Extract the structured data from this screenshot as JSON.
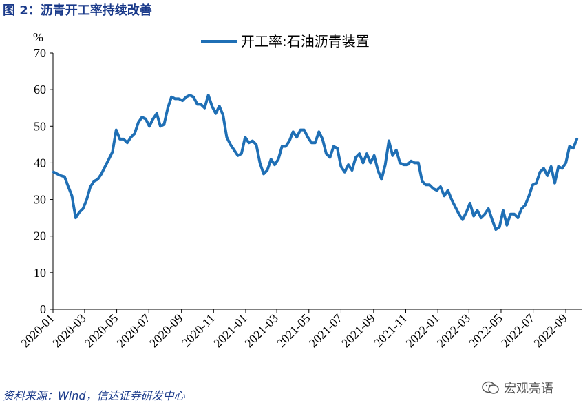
{
  "figure": {
    "title": "图 2：沥青开工率持续改善",
    "source": "资料来源：Wind，信达证券研发中心",
    "watermark": "宏观亮语"
  },
  "chart_data": {
    "type": "line",
    "unit_label": "%",
    "ylim": [
      0,
      70
    ],
    "yticks": [
      0,
      10,
      20,
      30,
      40,
      50,
      60,
      70
    ],
    "xlim": [
      "2020-01",
      "2022-10"
    ],
    "xticks": [
      "2020-01",
      "2020-03",
      "2020-05",
      "2020-07",
      "2020-09",
      "2020-11",
      "2021-01",
      "2021-03",
      "2021-05",
      "2021-07",
      "2021-09",
      "2021-11",
      "2022-01",
      "2022-03",
      "2022-05",
      "2022-07",
      "2022-09"
    ],
    "grid": false,
    "legend_position": "top-center",
    "series": [
      {
        "name": "开工率:石油沥青装置",
        "color": "#1f6fb5",
        "points": [
          [
            "2020-01-02",
            37.5
          ],
          [
            "2020-01-09",
            37.0
          ],
          [
            "2020-01-16",
            36.5
          ],
          [
            "2020-01-23",
            36.2
          ],
          [
            "2020-01-30",
            33.5
          ],
          [
            "2020-02-06",
            31.0
          ],
          [
            "2020-02-13",
            25.0
          ],
          [
            "2020-02-20",
            26.5
          ],
          [
            "2020-02-27",
            27.5
          ],
          [
            "2020-03-05",
            30.0
          ],
          [
            "2020-03-12",
            33.5
          ],
          [
            "2020-03-19",
            35.0
          ],
          [
            "2020-03-26",
            35.5
          ],
          [
            "2020-04-02",
            37.0
          ],
          [
            "2020-04-09",
            39.0
          ],
          [
            "2020-04-16",
            41.0
          ],
          [
            "2020-04-23",
            43.0
          ],
          [
            "2020-04-30",
            49.0
          ],
          [
            "2020-05-07",
            46.5
          ],
          [
            "2020-05-14",
            46.5
          ],
          [
            "2020-05-21",
            45.5
          ],
          [
            "2020-05-28",
            47.0
          ],
          [
            "2020-06-04",
            48.0
          ],
          [
            "2020-06-11",
            51.0
          ],
          [
            "2020-06-18",
            52.5
          ],
          [
            "2020-06-25",
            52.0
          ],
          [
            "2020-07-02",
            50.0
          ],
          [
            "2020-07-09",
            52.0
          ],
          [
            "2020-07-16",
            53.5
          ],
          [
            "2020-07-23",
            50.0
          ],
          [
            "2020-07-30",
            50.5
          ],
          [
            "2020-08-06",
            55.0
          ],
          [
            "2020-08-13",
            58.0
          ],
          [
            "2020-08-20",
            57.5
          ],
          [
            "2020-08-27",
            57.5
          ],
          [
            "2020-09-03",
            57.0
          ],
          [
            "2020-09-10",
            58.0
          ],
          [
            "2020-09-17",
            58.5
          ],
          [
            "2020-09-24",
            58.0
          ],
          [
            "2020-10-01",
            56.0
          ],
          [
            "2020-10-08",
            56.0
          ],
          [
            "2020-10-15",
            55.0
          ],
          [
            "2020-10-22",
            58.5
          ],
          [
            "2020-10-29",
            55.5
          ],
          [
            "2020-11-05",
            53.5
          ],
          [
            "2020-11-12",
            55.5
          ],
          [
            "2020-11-19",
            53.0
          ],
          [
            "2020-11-26",
            47.0
          ],
          [
            "2020-12-03",
            45.0
          ],
          [
            "2020-12-10",
            43.5
          ],
          [
            "2020-12-17",
            42.0
          ],
          [
            "2020-12-24",
            42.5
          ],
          [
            "2020-12-31",
            47.0
          ],
          [
            "2021-01-07",
            45.5
          ],
          [
            "2021-01-14",
            46.0
          ],
          [
            "2021-01-21",
            45.0
          ],
          [
            "2021-01-28",
            40.0
          ],
          [
            "2021-02-04",
            37.0
          ],
          [
            "2021-02-11",
            38.0
          ],
          [
            "2021-02-18",
            41.0
          ],
          [
            "2021-02-25",
            39.5
          ],
          [
            "2021-03-04",
            41.0
          ],
          [
            "2021-03-11",
            44.5
          ],
          [
            "2021-03-18",
            44.5
          ],
          [
            "2021-03-25",
            46.0
          ],
          [
            "2021-04-01",
            48.5
          ],
          [
            "2021-04-08",
            47.0
          ],
          [
            "2021-04-15",
            49.0
          ],
          [
            "2021-04-22",
            49.0
          ],
          [
            "2021-04-29",
            47.0
          ],
          [
            "2021-05-06",
            45.5
          ],
          [
            "2021-05-13",
            45.5
          ],
          [
            "2021-05-20",
            48.5
          ],
          [
            "2021-05-27",
            46.5
          ],
          [
            "2021-06-03",
            42.5
          ],
          [
            "2021-06-10",
            41.5
          ],
          [
            "2021-06-17",
            44.5
          ],
          [
            "2021-06-24",
            44.0
          ],
          [
            "2021-07-01",
            39.0
          ],
          [
            "2021-07-08",
            37.5
          ],
          [
            "2021-07-15",
            39.5
          ],
          [
            "2021-07-22",
            38.0
          ],
          [
            "2021-07-29",
            41.5
          ],
          [
            "2021-08-05",
            42.5
          ],
          [
            "2021-08-12",
            40.0
          ],
          [
            "2021-08-19",
            42.5
          ],
          [
            "2021-08-26",
            40.0
          ],
          [
            "2021-09-02",
            42.0
          ],
          [
            "2021-09-09",
            38.0
          ],
          [
            "2021-09-16",
            35.5
          ],
          [
            "2021-09-23",
            39.5
          ],
          [
            "2021-09-30",
            46.0
          ],
          [
            "2021-10-07",
            42.0
          ],
          [
            "2021-10-14",
            43.5
          ],
          [
            "2021-10-21",
            40.0
          ],
          [
            "2021-10-28",
            39.5
          ],
          [
            "2021-11-04",
            39.5
          ],
          [
            "2021-11-11",
            40.5
          ],
          [
            "2021-11-18",
            40.0
          ],
          [
            "2021-11-25",
            40.0
          ],
          [
            "2021-12-02",
            35.0
          ],
          [
            "2021-12-09",
            34.0
          ],
          [
            "2021-12-16",
            34.0
          ],
          [
            "2021-12-23",
            33.0
          ],
          [
            "2021-12-30",
            32.5
          ],
          [
            "2022-01-06",
            33.5
          ],
          [
            "2022-01-13",
            31.0
          ],
          [
            "2022-01-20",
            32.5
          ],
          [
            "2022-01-27",
            30.0
          ],
          [
            "2022-02-03",
            28.0
          ],
          [
            "2022-02-10",
            26.0
          ],
          [
            "2022-02-17",
            24.5
          ],
          [
            "2022-02-24",
            26.5
          ],
          [
            "2022-03-03",
            29.0
          ],
          [
            "2022-03-10",
            25.5
          ],
          [
            "2022-03-17",
            27.0
          ],
          [
            "2022-03-24",
            25.0
          ],
          [
            "2022-03-31",
            26.0
          ],
          [
            "2022-04-07",
            27.5
          ],
          [
            "2022-04-14",
            24.5
          ],
          [
            "2022-04-21",
            21.8
          ],
          [
            "2022-04-28",
            22.5
          ],
          [
            "2022-05-05",
            27.0
          ],
          [
            "2022-05-12",
            23.0
          ],
          [
            "2022-05-19",
            26.0
          ],
          [
            "2022-05-26",
            26.0
          ],
          [
            "2022-06-02",
            25.0
          ],
          [
            "2022-06-09",
            27.5
          ],
          [
            "2022-06-16",
            28.5
          ],
          [
            "2022-06-23",
            31.0
          ],
          [
            "2022-06-30",
            34.0
          ],
          [
            "2022-07-07",
            34.5
          ],
          [
            "2022-07-14",
            37.5
          ],
          [
            "2022-07-21",
            38.5
          ],
          [
            "2022-07-28",
            36.5
          ],
          [
            "2022-08-04",
            39.0
          ],
          [
            "2022-08-11",
            34.5
          ],
          [
            "2022-08-18",
            39.0
          ],
          [
            "2022-08-25",
            38.5
          ],
          [
            "2022-09-01",
            40.0
          ],
          [
            "2022-09-08",
            44.5
          ],
          [
            "2022-09-15",
            44.0
          ],
          [
            "2022-09-22",
            46.5
          ]
        ]
      }
    ]
  }
}
